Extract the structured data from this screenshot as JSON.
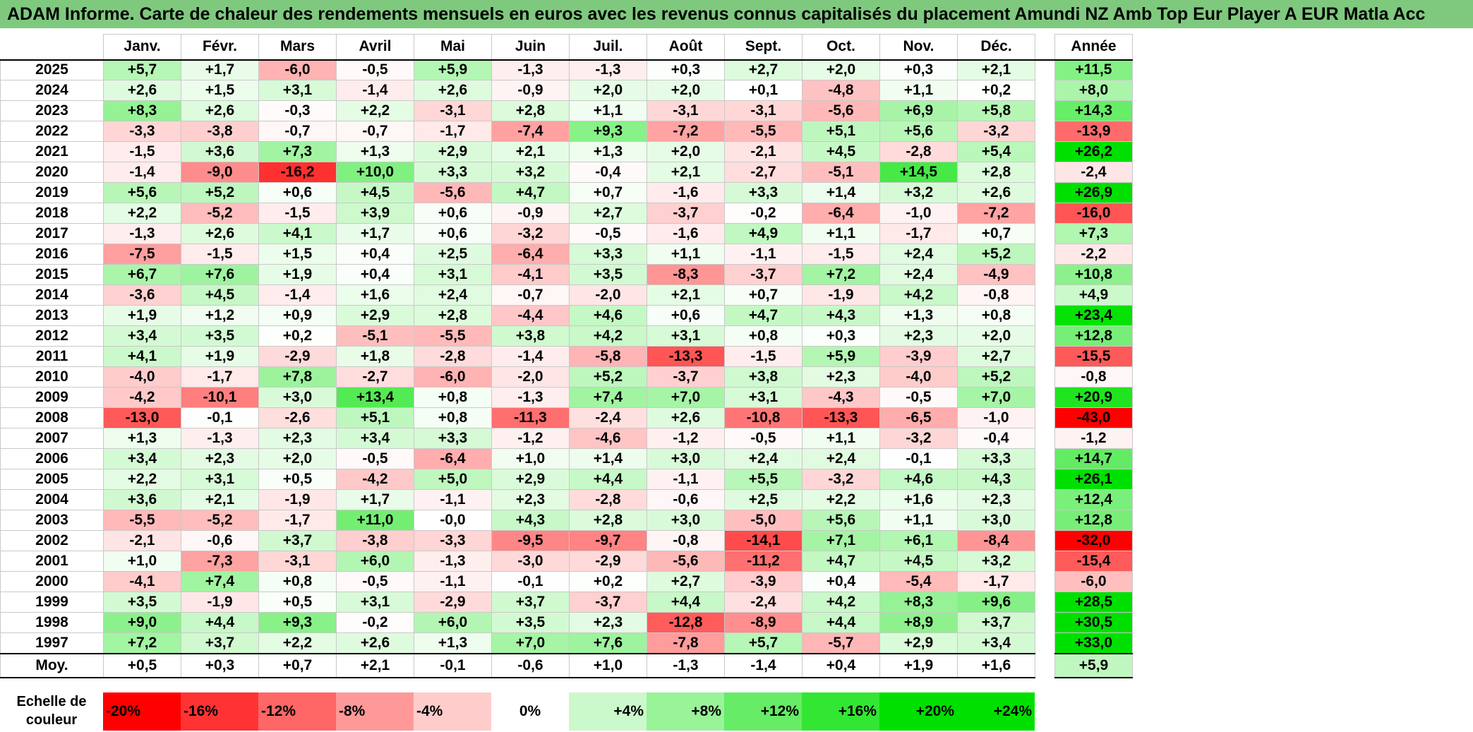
{
  "title": "ADAM Informe. Carte de chaleur des rendements mensuels en euros avec les revenus connus capitalisés du placement Amundi NZ Amb Top Eur Player A EUR Matla Acc",
  "chart_data": {
    "type": "heatmap",
    "columns": [
      "Janv.",
      "Févr.",
      "Mars",
      "Avril",
      "Mai",
      "Juin",
      "Juil.",
      "Août",
      "Sept.",
      "Oct.",
      "Nov.",
      "Déc."
    ],
    "annual_header": "Année",
    "rows": [
      {
        "year": "2025",
        "values": [
          "+5,7",
          "+1,7",
          "-6,0",
          "-0,5",
          "+5,9",
          "-1,3",
          "-1,3",
          "+0,3",
          "+2,7",
          "+2,0",
          "+0,3",
          "+2,1"
        ],
        "annual": "+11,5"
      },
      {
        "year": "2024",
        "values": [
          "+2,6",
          "+1,5",
          "+3,1",
          "-1,4",
          "+2,6",
          "-0,9",
          "+2,0",
          "+2,0",
          "+0,1",
          "-4,8",
          "+1,1",
          "+0,2"
        ],
        "annual": "+8,0"
      },
      {
        "year": "2023",
        "values": [
          "+8,3",
          "+2,6",
          "-0,3",
          "+2,2",
          "-3,1",
          "+2,8",
          "+1,1",
          "-3,1",
          "-3,1",
          "-5,6",
          "+6,9",
          "+5,8"
        ],
        "annual": "+14,3"
      },
      {
        "year": "2022",
        "values": [
          "-3,3",
          "-3,8",
          "-0,7",
          "-0,7",
          "-1,7",
          "-7,4",
          "+9,3",
          "-7,2",
          "-5,5",
          "+5,1",
          "+5,6",
          "-3,2"
        ],
        "annual": "-13,9"
      },
      {
        "year": "2021",
        "values": [
          "-1,5",
          "+3,6",
          "+7,3",
          "+1,3",
          "+2,9",
          "+2,1",
          "+1,3",
          "+2,0",
          "-2,1",
          "+4,5",
          "-2,8",
          "+5,4"
        ],
        "annual": "+26,2"
      },
      {
        "year": "2020",
        "values": [
          "-1,4",
          "-9,0",
          "-16,2",
          "+10,0",
          "+3,3",
          "+3,2",
          "-0,4",
          "+2,1",
          "-2,7",
          "-5,1",
          "+14,5",
          "+2,8"
        ],
        "annual": "-2,4"
      },
      {
        "year": "2019",
        "values": [
          "+5,6",
          "+5,2",
          "+0,6",
          "+4,5",
          "-5,6",
          "+4,7",
          "+0,7",
          "-1,6",
          "+3,3",
          "+1,4",
          "+3,2",
          "+2,6"
        ],
        "annual": "+26,9"
      },
      {
        "year": "2018",
        "values": [
          "+2,2",
          "-5,2",
          "-1,5",
          "+3,9",
          "+0,6",
          "-0,9",
          "+2,7",
          "-3,7",
          "-0,2",
          "-6,4",
          "-1,0",
          "-7,2"
        ],
        "annual": "-16,0"
      },
      {
        "year": "2017",
        "values": [
          "-1,3",
          "+2,6",
          "+4,1",
          "+1,7",
          "+0,6",
          "-3,2",
          "-0,5",
          "-1,6",
          "+4,9",
          "+1,1",
          "-1,7",
          "+0,7"
        ],
        "annual": "+7,3"
      },
      {
        "year": "2016",
        "values": [
          "-7,5",
          "-1,5",
          "+1,5",
          "+0,4",
          "+2,5",
          "-6,4",
          "+3,3",
          "+1,1",
          "-1,1",
          "-1,5",
          "+2,4",
          "+5,2"
        ],
        "annual": "-2,2"
      },
      {
        "year": "2015",
        "values": [
          "+6,7",
          "+7,6",
          "+1,9",
          "+0,4",
          "+3,1",
          "-4,1",
          "+3,5",
          "-8,3",
          "-3,7",
          "+7,2",
          "+2,4",
          "-4,9"
        ],
        "annual": "+10,8"
      },
      {
        "year": "2014",
        "values": [
          "-3,6",
          "+4,5",
          "-1,4",
          "+1,6",
          "+2,4",
          "-0,7",
          "-2,0",
          "+2,1",
          "+0,7",
          "-1,9",
          "+4,2",
          "-0,8"
        ],
        "annual": "+4,9"
      },
      {
        "year": "2013",
        "values": [
          "+1,9",
          "+1,2",
          "+0,9",
          "+2,9",
          "+2,8",
          "-4,4",
          "+4,6",
          "+0,6",
          "+4,7",
          "+4,3",
          "+1,3",
          "+0,8"
        ],
        "annual": "+23,4"
      },
      {
        "year": "2012",
        "values": [
          "+3,4",
          "+3,5",
          "+0,2",
          "-5,1",
          "-5,5",
          "+3,8",
          "+4,2",
          "+3,1",
          "+0,8",
          "+0,3",
          "+2,3",
          "+2,0"
        ],
        "annual": "+12,8"
      },
      {
        "year": "2011",
        "values": [
          "+4,1",
          "+1,9",
          "-2,9",
          "+1,8",
          "-2,8",
          "-1,4",
          "-5,8",
          "-13,3",
          "-1,5",
          "+5,9",
          "-3,9",
          "+2,7"
        ],
        "annual": "-15,5"
      },
      {
        "year": "2010",
        "values": [
          "-4,0",
          "-1,7",
          "+7,8",
          "-2,7",
          "-6,0",
          "-2,0",
          "+5,2",
          "-3,7",
          "+3,8",
          "+2,3",
          "-4,0",
          "+5,2"
        ],
        "annual": "-0,8"
      },
      {
        "year": "2009",
        "values": [
          "-4,2",
          "-10,1",
          "+3,0",
          "+13,4",
          "+0,8",
          "-1,3",
          "+7,4",
          "+7,0",
          "+3,1",
          "-4,3",
          "-0,5",
          "+7,0"
        ],
        "annual": "+20,9"
      },
      {
        "year": "2008",
        "values": [
          "-13,0",
          "-0,1",
          "-2,6",
          "+5,1",
          "+0,8",
          "-11,3",
          "-2,4",
          "+2,6",
          "-10,8",
          "-13,3",
          "-6,5",
          "-1,0"
        ],
        "annual": "-43,0"
      },
      {
        "year": "2007",
        "values": [
          "+1,3",
          "-1,3",
          "+2,3",
          "+3,4",
          "+3,3",
          "-1,2",
          "-4,6",
          "-1,2",
          "-0,5",
          "+1,1",
          "-3,2",
          "-0,4"
        ],
        "annual": "-1,2"
      },
      {
        "year": "2006",
        "values": [
          "+3,4",
          "+2,3",
          "+2,0",
          "-0,5",
          "-6,4",
          "+1,0",
          "+1,4",
          "+3,0",
          "+2,4",
          "+2,4",
          "-0,1",
          "+3,3"
        ],
        "annual": "+14,7"
      },
      {
        "year": "2005",
        "values": [
          "+2,2",
          "+3,1",
          "+0,5",
          "-4,2",
          "+5,0",
          "+2,9",
          "+4,4",
          "-1,1",
          "+5,5",
          "-3,2",
          "+4,6",
          "+4,3"
        ],
        "annual": "+26,1"
      },
      {
        "year": "2004",
        "values": [
          "+3,6",
          "+2,1",
          "-1,9",
          "+1,7",
          "-1,1",
          "+2,3",
          "-2,8",
          "-0,6",
          "+2,5",
          "+2,2",
          "+1,6",
          "+2,3"
        ],
        "annual": "+12,4"
      },
      {
        "year": "2003",
        "values": [
          "-5,5",
          "-5,2",
          "-1,7",
          "+11,0",
          "-0,0",
          "+4,3",
          "+2,8",
          "+3,0",
          "-5,0",
          "+5,6",
          "+1,1",
          "+3,0"
        ],
        "annual": "+12,8"
      },
      {
        "year": "2002",
        "values": [
          "-2,1",
          "-0,6",
          "+3,7",
          "-3,8",
          "-3,3",
          "-9,5",
          "-9,7",
          "-0,8",
          "-14,1",
          "+7,1",
          "+6,1",
          "-8,4"
        ],
        "annual": "-32,0"
      },
      {
        "year": "2001",
        "values": [
          "+1,0",
          "-7,3",
          "-3,1",
          "+6,0",
          "-1,3",
          "-3,0",
          "-2,9",
          "-5,6",
          "-11,2",
          "+4,7",
          "+4,5",
          "+3,2"
        ],
        "annual": "-15,4"
      },
      {
        "year": "2000",
        "values": [
          "-4,1",
          "+7,4",
          "+0,8",
          "-0,5",
          "-1,1",
          "-0,1",
          "+0,2",
          "+2,7",
          "-3,9",
          "+0,4",
          "-5,4",
          "-1,7"
        ],
        "annual": "-6,0"
      },
      {
        "year": "1999",
        "values": [
          "+3,5",
          "-1,9",
          "+0,5",
          "+3,1",
          "-2,9",
          "+3,7",
          "-3,7",
          "+4,4",
          "-2,4",
          "+4,2",
          "+8,3",
          "+9,6"
        ],
        "annual": "+28,5"
      },
      {
        "year": "1998",
        "values": [
          "+9,0",
          "+4,4",
          "+9,3",
          "-0,2",
          "+6,0",
          "+3,5",
          "+2,3",
          "-12,8",
          "-8,9",
          "+4,4",
          "+8,9",
          "+3,7"
        ],
        "annual": "+30,5"
      },
      {
        "year": "1997",
        "values": [
          "+7,2",
          "+3,7",
          "+2,2",
          "+2,6",
          "+1,3",
          "+7,0",
          "+7,6",
          "-7,8",
          "+5,7",
          "-5,7",
          "+2,9",
          "+3,4"
        ],
        "annual": "+33,0"
      }
    ],
    "average": {
      "label": "Moy.",
      "values": [
        "+0,5",
        "+0,3",
        "+0,7",
        "+2,1",
        "-0,1",
        "-0,6",
        "+1,0",
        "-1,3",
        "-1,4",
        "+0,4",
        "+1,9",
        "+1,6"
      ],
      "annual": "+5,9"
    },
    "scale": {
      "label": "Echelle de couleur",
      "steps": [
        {
          "text": "-20%",
          "value": -20
        },
        {
          "text": "-16%",
          "value": -16
        },
        {
          "text": "-12%",
          "value": -12
        },
        {
          "text": "-8%",
          "value": -8
        },
        {
          "text": "-4%",
          "value": -4
        },
        {
          "text": "0%",
          "value": 0
        },
        {
          "text": "+4%",
          "value": 4
        },
        {
          "text": "+8%",
          "value": 8
        },
        {
          "text": "+12%",
          "value": 12
        },
        {
          "text": "+16%",
          "value": 16
        },
        {
          "text": "+20%",
          "value": 20
        },
        {
          "text": "+24%",
          "value": 24
        }
      ]
    },
    "colors": {
      "negative_max": "#ff0000",
      "neutral": "#ffffff",
      "positive_max": "#00e000"
    }
  }
}
